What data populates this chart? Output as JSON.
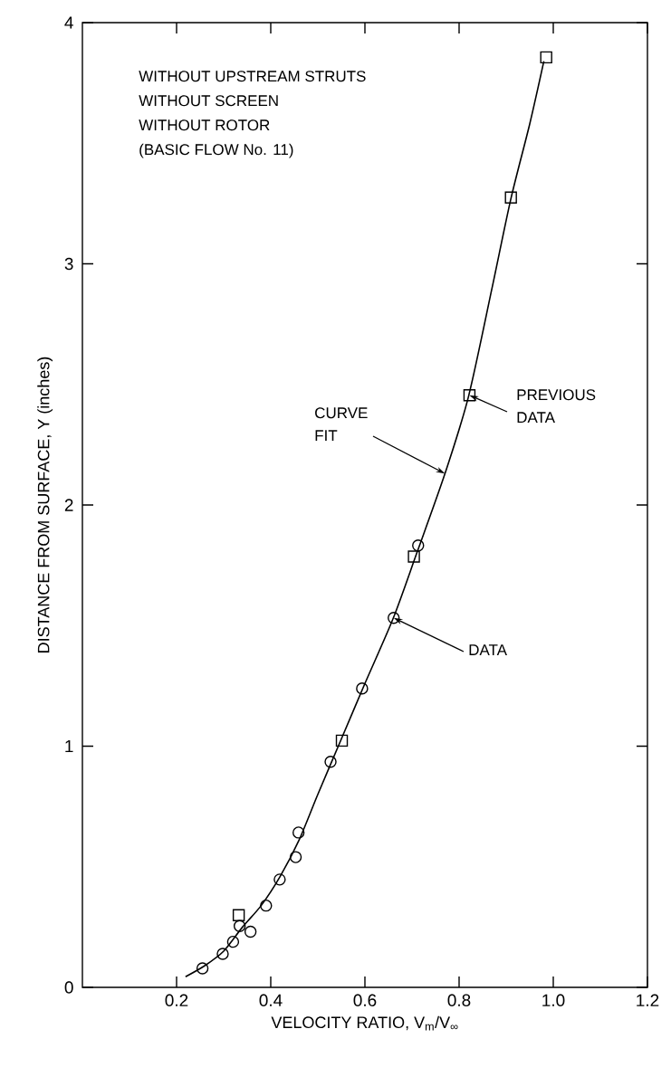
{
  "chart_data": {
    "type": "scatter",
    "xlabel": "VELOCITY RATIO, V$_{m}$/V$_{∞}$",
    "ylabel": "DISTANCE FROM SURFACE, Y (inches)",
    "xlim": [
      0,
      1.2
    ],
    "ylim": [
      0,
      4
    ],
    "xticks": [
      0.2,
      0.4,
      0.6,
      0.8,
      {
        "value": 1.0,
        "label": "1.0"
      },
      1.2
    ],
    "yticks": [
      0,
      1,
      2,
      3,
      4
    ],
    "series": [
      {
        "marker": "circle",
        "color": "#000000",
        "x": [
          0.255,
          0.298,
          0.32,
          0.334,
          0.357,
          0.39,
          0.419,
          0.453,
          0.459,
          0.527,
          0.594,
          0.661,
          0.713
        ],
        "values": [
          0.079,
          0.139,
          0.189,
          0.254,
          0.231,
          0.339,
          0.447,
          0.54,
          0.642,
          0.935,
          1.239,
          1.532,
          1.832
        ]
      },
      {
        "marker": "square",
        "color": "#000000",
        "x": [
          0.332,
          0.551,
          0.704,
          0.822,
          0.91,
          0.985
        ],
        "values": [
          0.299,
          1.023,
          1.786,
          2.455,
          3.275,
          3.856
        ]
      },
      {
        "type": "line",
        "marker": "none",
        "line_style": "solid",
        "color": "#000000",
        "x": [
          0.219,
          0.26,
          0.3,
          0.34,
          0.38,
          0.42,
          0.46,
          0.5,
          0.55,
          0.6,
          0.66,
          0.71,
          0.77,
          0.82,
          0.87,
          0.91,
          0.95,
          0.98
        ],
        "values": [
          0.044,
          0.09,
          0.15,
          0.25,
          0.34,
          0.46,
          0.61,
          0.8,
          1.03,
          1.26,
          1.53,
          1.8,
          2.13,
          2.45,
          2.9,
          3.27,
          3.58,
          3.84
        ]
      }
    ],
    "annotations": [
      "WITHOUT UPSTREAM STRUTS",
      "WITHOUT SCREEN",
      "WITHOUT ROTOR",
      "(BASIC FLOW No. 11)",
      {
        "text": "CURVE FIT",
        "x": 0.77,
        "y": 2.13
      },
      {
        "text": "PREVIOUS DATA",
        "x": 0.822,
        "y": 2.455
      },
      {
        "text": "DATA",
        "x": 0.661,
        "y": 1.532
      }
    ]
  }
}
